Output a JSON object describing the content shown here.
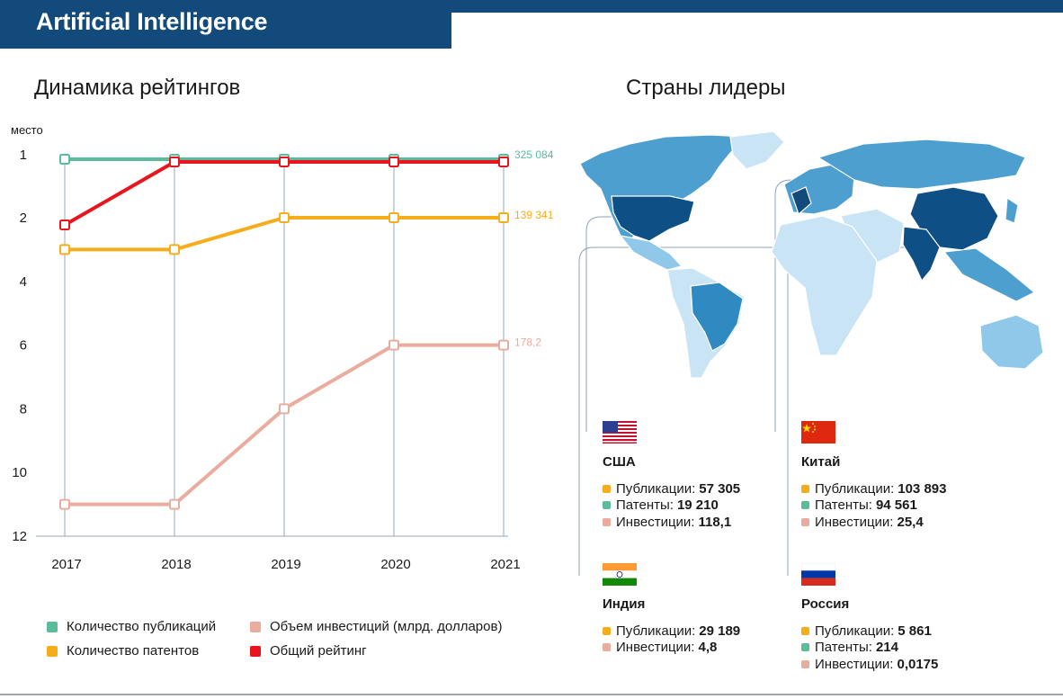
{
  "header": {
    "title": "Artificial Intelligence"
  },
  "left": {
    "heading": "Динамика рейтингов"
  },
  "right": {
    "heading": "Страны лидеры"
  },
  "colors": {
    "publications": "#5bbc9b",
    "patents": "#f5ad1b",
    "investments": "#e9ac9f",
    "overall": "#e8141e",
    "brand": "#134a7c"
  },
  "chart_data": {
    "type": "line",
    "ylabel": "место",
    "x": [
      "2017",
      "2018",
      "2019",
      "2020",
      "2021"
    ],
    "y_ticks": [
      1,
      2,
      4,
      6,
      8,
      10,
      12
    ],
    "y_reversed": true,
    "grid": "vertical",
    "series": [
      {
        "name": "Количество публикаций",
        "key": "publications",
        "values": [
          1,
          1,
          1,
          1,
          1
        ],
        "end_label": "325 084"
      },
      {
        "name": "Количество патентов",
        "key": "patents",
        "values": [
          3,
          3,
          2,
          2,
          2
        ],
        "end_label": "139 341"
      },
      {
        "name": "Объем инвестиций (млрд. долларов)",
        "key": "investments",
        "values": [
          11,
          11,
          8,
          6,
          6
        ],
        "end_label": "178,2"
      },
      {
        "name": "Общий рейтинг",
        "key": "overall",
        "values": [
          2,
          1,
          1,
          1,
          1
        ],
        "end_label": ""
      }
    ],
    "legend_placement": "bottom"
  },
  "countries": [
    {
      "name": "США",
      "flag": "us",
      "stats": [
        {
          "key": "publications",
          "label": "Публикации:",
          "value": "57 305"
        },
        {
          "key": "patents",
          "label": "Патенты:",
          "value": "19 210"
        },
        {
          "key": "investments",
          "label": "Инвестиции:",
          "value": "118,1"
        }
      ]
    },
    {
      "name": "Китай",
      "flag": "cn",
      "stats": [
        {
          "key": "publications",
          "label": "Публикации:",
          "value": "103 893"
        },
        {
          "key": "patents",
          "label": "Патенты:",
          "value": "94 561"
        },
        {
          "key": "investments",
          "label": "Инвестиции:",
          "value": "25,4"
        }
      ]
    },
    {
      "name": "Индия",
      "flag": "in",
      "stats": [
        {
          "key": "publications",
          "label": "Публикации:",
          "value": "29 189"
        },
        {
          "key": "investments",
          "label": "Инвестиции:",
          "value": "4,8"
        }
      ]
    },
    {
      "name": "Россия",
      "flag": "ru",
      "stats": [
        {
          "key": "publications",
          "label": "Публикации:",
          "value": "5 861"
        },
        {
          "key": "patents",
          "label": "Патенты:",
          "value": "214"
        },
        {
          "key": "investments",
          "label": "Инвестиции:",
          "value": "0,0175"
        }
      ]
    }
  ]
}
